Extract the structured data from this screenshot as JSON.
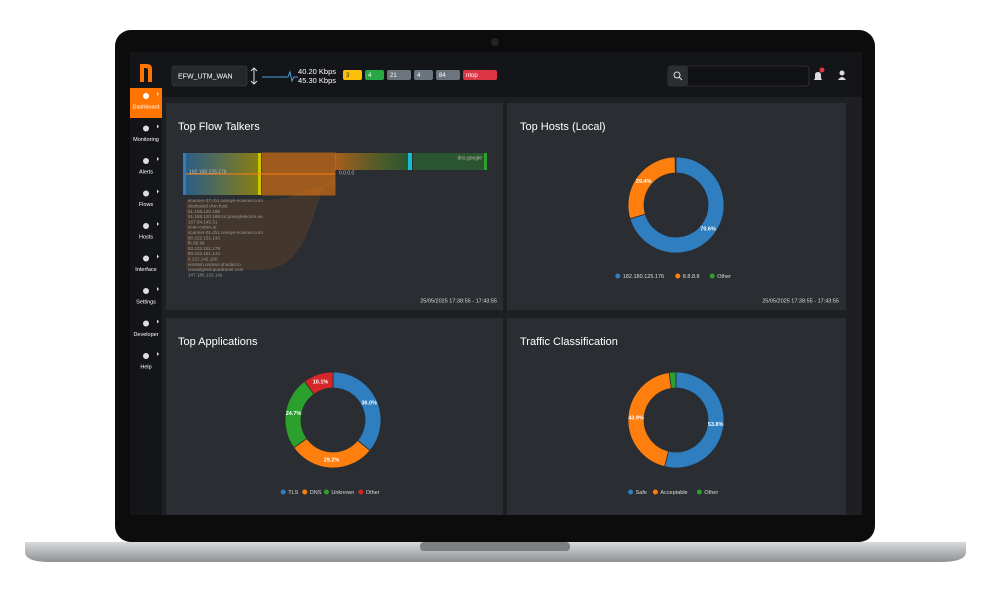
{
  "topbar": {
    "interface": "EFW_UTM_WAN",
    "upload": "40.20 Kbps",
    "download": "45.30 Kbps",
    "badges": [
      "3",
      "4",
      "21",
      "4",
      "84",
      "ntop"
    ]
  },
  "sidebar": [
    "Dashboard",
    "Monitoring",
    "Alerts",
    "Flows",
    "Hosts",
    "Interface",
    "Settings",
    "Developer",
    "Help"
  ],
  "panels": [
    {
      "title": "Top Flow Talkers",
      "timestamp": "25/05/2025 17:38:55 - 17:43:55",
      "sankey": {
        "source": "192.168.125.176",
        "middle": "0.0.0.0",
        "target": "dns.google",
        "hosts": [
          "scanner-27.ch1.censys-scanner.com",
          "dedicated.vlun.host",
          "51.158.120.188",
          "51.158.120.188.tor.poneytelecom.eu",
          "167.94.145.31",
          "scan-cubex.ai",
          "scanner-01.ch1.censys-scanner.com",
          "80.222.151.143",
          "fb.99.98",
          "83.222.151.179",
          "80.222.151.143",
          "8.221.142.100",
          "einstein.census.shodan.io",
          "unassigned.quadranet.com",
          "147.185.133.142"
        ]
      }
    },
    {
      "title": "Top Hosts (Local)",
      "timestamp": "25/05/2025 17:38:55 - 17:43:55",
      "chart": {
        "type": "pie",
        "categories": [
          "182.180.125.176",
          "8.8.8.8",
          "Other"
        ],
        "values": [
          70.6,
          29.4,
          0.3
        ],
        "value_labels": [
          "70.6%",
          "29.4%",
          null
        ],
        "colors": [
          "#2e7ec0",
          "#ff7f0e",
          "#2ca02c"
        ]
      }
    },
    {
      "title": "Top Applications",
      "chart": {
        "type": "pie",
        "categories": [
          "TLS",
          "DNS",
          "Unknown",
          "Other"
        ],
        "values": [
          36.0,
          29.2,
          24.7,
          10.1
        ],
        "value_labels": [
          "36.0%",
          "29.2%",
          "24.7%",
          "10.1%"
        ],
        "colors": [
          "#2e7ec0",
          "#ff7f0e",
          "#2ca02c",
          "#d62728"
        ]
      }
    },
    {
      "title": "Traffic Classification",
      "chart": {
        "type": "pie",
        "categories": [
          "Safe",
          "Acceptable",
          "Other"
        ],
        "values": [
          53.8,
          43.9,
          2.3
        ],
        "value_labels": [
          "53.8%",
          "43.9%",
          null
        ],
        "colors": [
          "#2e7ec0",
          "#ff7f0e",
          "#2ca02c"
        ]
      }
    }
  ]
}
